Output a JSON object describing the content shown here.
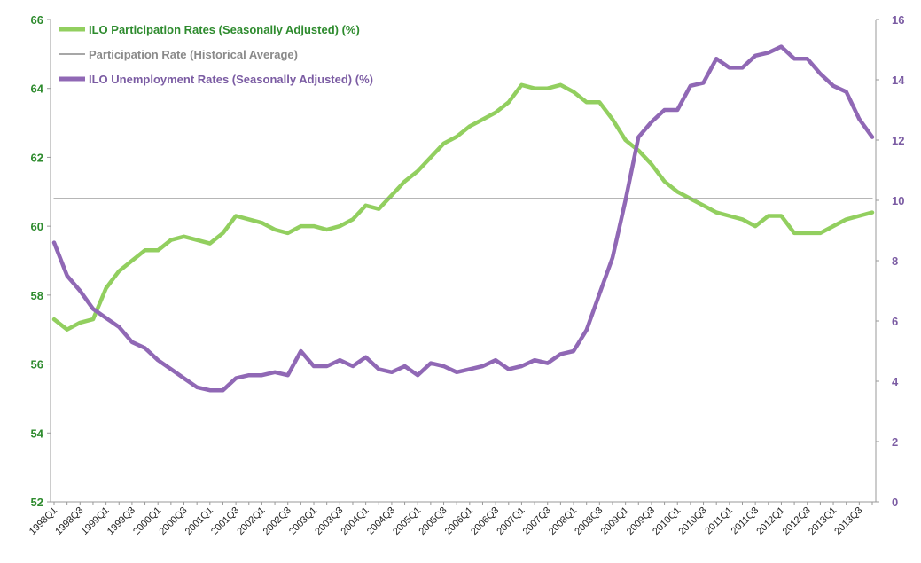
{
  "chart_data": {
    "type": "line",
    "title": "",
    "x_tick_labels": [
      "1998Q1",
      "1998Q3",
      "1999Q1",
      "1999Q3",
      "2000Q1",
      "2000Q3",
      "2001Q1",
      "2001Q3",
      "2002Q1",
      "2002Q3",
      "2003Q1",
      "2003Q3",
      "2004Q1",
      "2004Q3",
      "2005Q1",
      "2005Q3",
      "2006Q1",
      "2006Q3",
      "2007Q1",
      "2007Q3",
      "2008Q1",
      "2008Q3",
      "2009Q1",
      "2009Q3",
      "2010Q1",
      "2010Q3",
      "2011Q1",
      "2011Q3",
      "2012Q1",
      "2012Q3",
      "2013Q1",
      "2013Q3"
    ],
    "x": [
      "1998Q1",
      "1998Q2",
      "1998Q3",
      "1998Q4",
      "1999Q1",
      "1999Q2",
      "1999Q3",
      "1999Q4",
      "2000Q1",
      "2000Q2",
      "2000Q3",
      "2000Q4",
      "2001Q1",
      "2001Q2",
      "2001Q3",
      "2001Q4",
      "2002Q1",
      "2002Q2",
      "2002Q3",
      "2002Q4",
      "2003Q1",
      "2003Q2",
      "2003Q3",
      "2003Q4",
      "2004Q1",
      "2004Q2",
      "2004Q3",
      "2004Q4",
      "2005Q1",
      "2005Q2",
      "2005Q3",
      "2005Q4",
      "2006Q1",
      "2006Q2",
      "2006Q3",
      "2006Q4",
      "2007Q1",
      "2007Q2",
      "2007Q3",
      "2007Q4",
      "2008Q1",
      "2008Q2",
      "2008Q3",
      "2008Q4",
      "2009Q1",
      "2009Q2",
      "2009Q3",
      "2009Q4",
      "2010Q1",
      "2010Q2",
      "2010Q3",
      "2010Q4",
      "2011Q1",
      "2011Q2",
      "2011Q3",
      "2011Q4",
      "2012Q1",
      "2012Q2",
      "2012Q3",
      "2012Q4",
      "2013Q1",
      "2013Q2",
      "2013Q3",
      "2013Q4"
    ],
    "left_axis": {
      "ylim": [
        52,
        66
      ],
      "ticks": [
        52,
        54,
        56,
        58,
        60,
        62,
        64,
        66
      ],
      "color": "#2e8b2e"
    },
    "right_axis": {
      "ylim": [
        0,
        16
      ],
      "ticks": [
        0,
        2,
        4,
        6,
        8,
        10,
        12,
        14,
        16
      ],
      "color": "#7b5ca3"
    },
    "series": [
      {
        "name": "ILO Participation Rates (Seasonally Adjusted) (%)",
        "axis": "left",
        "color": "#92cf5f",
        "values": [
          57.3,
          57.0,
          57.2,
          57.3,
          58.2,
          58.7,
          59.0,
          59.3,
          59.3,
          59.6,
          59.7,
          59.6,
          59.5,
          59.8,
          60.3,
          60.2,
          60.1,
          59.9,
          59.8,
          60.0,
          60.0,
          59.9,
          60.0,
          60.2,
          60.6,
          60.5,
          60.9,
          61.3,
          61.6,
          62.0,
          62.4,
          62.6,
          62.9,
          63.1,
          63.3,
          63.6,
          64.1,
          64.0,
          64.0,
          64.1,
          63.9,
          63.6,
          63.6,
          63.1,
          62.5,
          62.2,
          61.8,
          61.3,
          61.0,
          60.8,
          60.6,
          60.4,
          60.3,
          60.2,
          60.0,
          60.3,
          60.3,
          59.8,
          59.8,
          59.8,
          60.0,
          60.2,
          60.3,
          60.4
        ]
      },
      {
        "name": "Participation Rate (Historical Average)",
        "axis": "left",
        "color": "#8a8a8a",
        "values": [
          60.8,
          60.8,
          60.8,
          60.8,
          60.8,
          60.8,
          60.8,
          60.8,
          60.8,
          60.8,
          60.8,
          60.8,
          60.8,
          60.8,
          60.8,
          60.8,
          60.8,
          60.8,
          60.8,
          60.8,
          60.8,
          60.8,
          60.8,
          60.8,
          60.8,
          60.8,
          60.8,
          60.8,
          60.8,
          60.8,
          60.8,
          60.8,
          60.8,
          60.8,
          60.8,
          60.8,
          60.8,
          60.8,
          60.8,
          60.8,
          60.8,
          60.8,
          60.8,
          60.8,
          60.8,
          60.8,
          60.8,
          60.8,
          60.8,
          60.8,
          60.8,
          60.8,
          60.8,
          60.8,
          60.8,
          60.8,
          60.8,
          60.8,
          60.8,
          60.8,
          60.8,
          60.8,
          60.8,
          60.8
        ]
      },
      {
        "name": "ILO Unemployment Rates (Seasonally Adjusted) (%)",
        "axis": "right",
        "color": "#9068b5",
        "values": [
          8.6,
          7.5,
          7.0,
          6.4,
          6.1,
          5.8,
          5.3,
          5.1,
          4.7,
          4.4,
          4.1,
          3.8,
          3.7,
          3.7,
          4.1,
          4.2,
          4.2,
          4.3,
          4.2,
          5.0,
          4.5,
          4.5,
          4.7,
          4.5,
          4.8,
          4.4,
          4.3,
          4.5,
          4.2,
          4.6,
          4.5,
          4.3,
          4.4,
          4.5,
          4.7,
          4.4,
          4.5,
          4.7,
          4.6,
          4.9,
          5.0,
          5.7,
          6.9,
          8.1,
          10.0,
          12.1,
          12.6,
          13.0,
          13.0,
          13.8,
          13.9,
          14.7,
          14.4,
          14.4,
          14.8,
          14.9,
          15.1,
          14.7,
          14.7,
          14.2,
          13.8,
          13.6,
          12.7,
          12.1
        ]
      }
    ],
    "legend_position": "top-left",
    "grid": false
  }
}
